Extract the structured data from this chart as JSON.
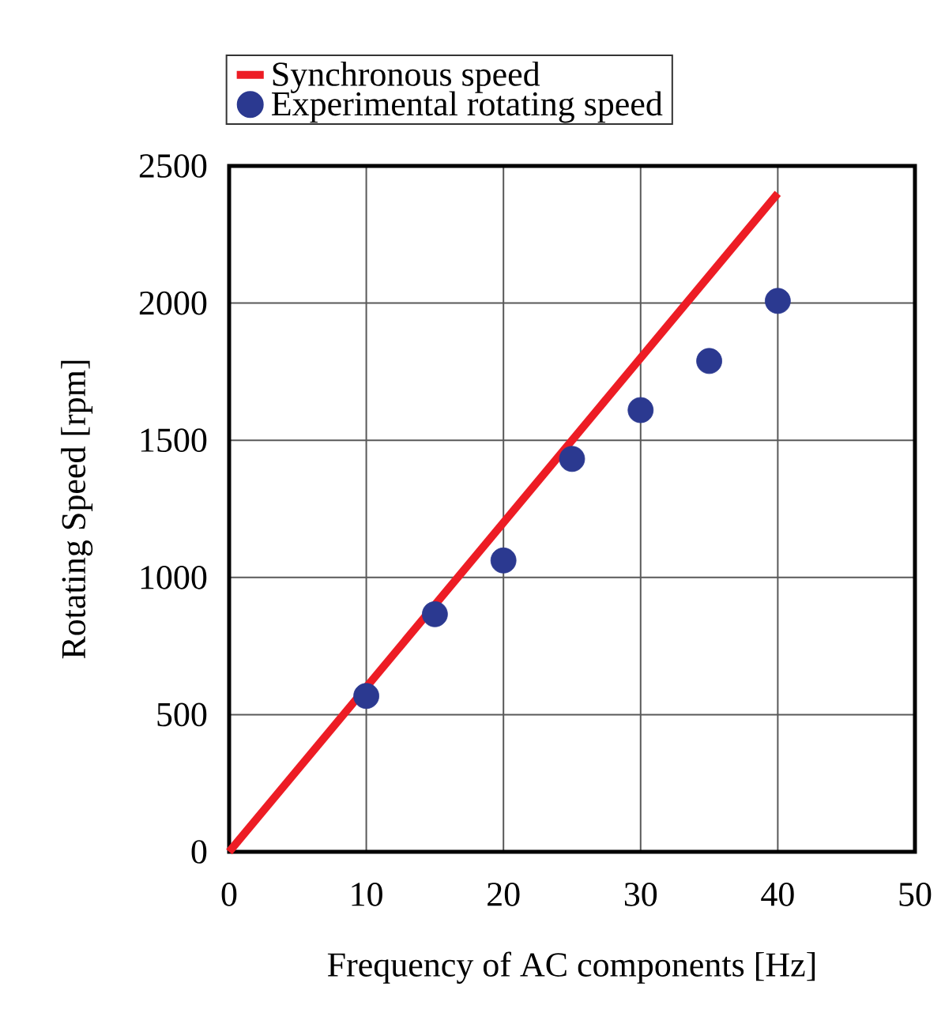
{
  "chart_data": {
    "type": "scatter",
    "xlabel": "Frequency of AC components [Hz]",
    "ylabel": "Rotating Speed [rpm]",
    "xlim": [
      0,
      50
    ],
    "ylim": [
      0,
      2500
    ],
    "xticks": [
      0,
      10,
      20,
      30,
      40,
      50
    ],
    "yticks": [
      0,
      500,
      1000,
      1500,
      2000,
      2500
    ],
    "grid": true,
    "legend": "top",
    "marker": "circle",
    "series": [
      {
        "name": "Synchronous speed",
        "type": "line",
        "color": "#ed1c24",
        "marker": "none",
        "x": [
          0,
          40
        ],
        "values": [
          0,
          2400
        ]
      },
      {
        "name": "Experimental rotating speed",
        "color": "#2b3990",
        "x": [
          10,
          15,
          20,
          25,
          30,
          35,
          40
        ],
        "values": [
          568,
          866,
          1062,
          1432,
          1610,
          1789,
          2008
        ]
      }
    ]
  }
}
